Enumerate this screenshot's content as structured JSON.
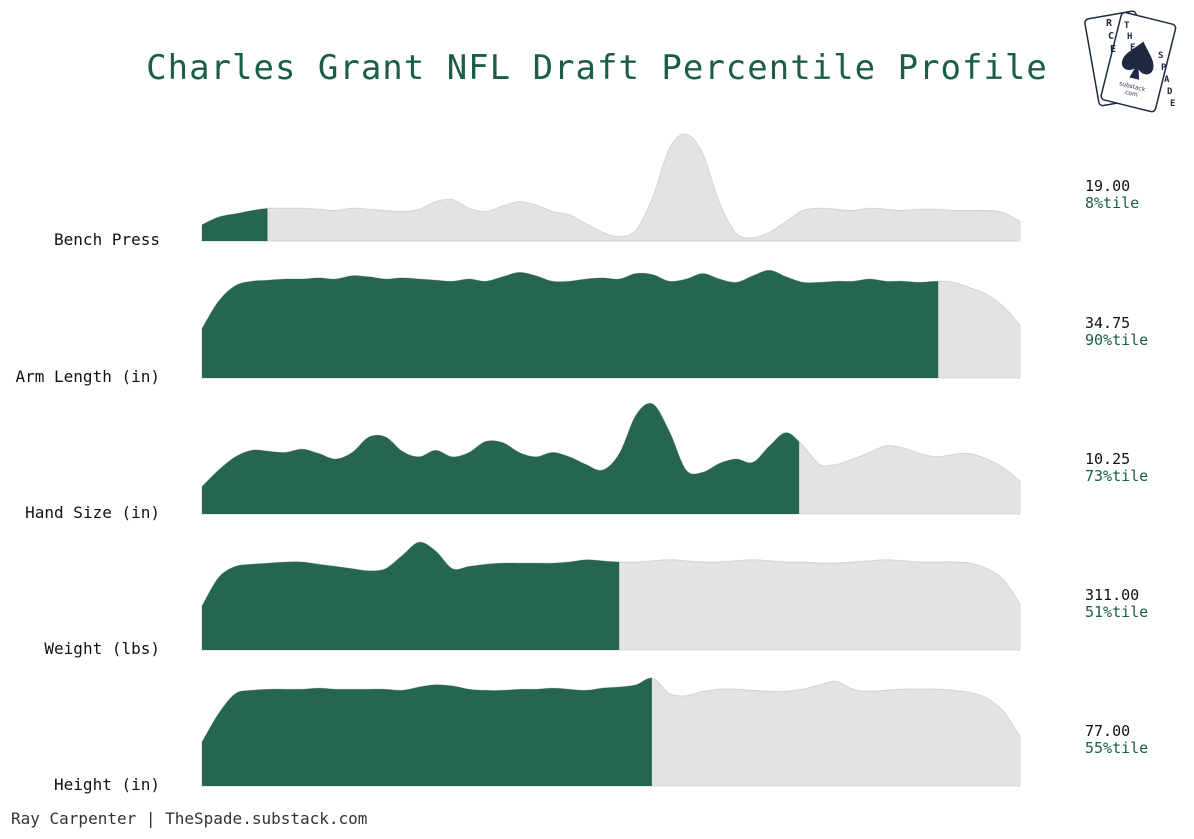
{
  "chart_data": {
    "type": "area",
    "title": "Charles Grant NFL Draft Percentile Profile",
    "subtitle": "",
    "xlabel": "",
    "ylabel": "",
    "style": "ridgeline density; shaded to player's percentile",
    "series": [
      {
        "name": "Bench Press",
        "value": "19.00",
        "percentile_label": "8%tile",
        "percentile": 8
      },
      {
        "name": "Arm Length (in)",
        "value": "34.75",
        "percentile_label": "90%tile",
        "percentile": 90
      },
      {
        "name": "Hand Size (in)",
        "value": "10.25",
        "percentile_label": "73%tile",
        "percentile": 73
      },
      {
        "name": "Weight (lbs)",
        "value": "311.00",
        "percentile_label": "51%tile",
        "percentile": 51
      },
      {
        "name": "Height (in)",
        "value": "77.00",
        "percentile_label": "55%tile",
        "percentile": 55
      }
    ]
  },
  "colors": {
    "highlight": "#266550",
    "rest": "#e3e3e3",
    "outline": "#d4d4d4",
    "title": "#1b5e44",
    "percentile_text": "#1b5e44"
  },
  "footer": "Ray Carpenter | TheSpade.substack.com",
  "logo": {
    "letters_left": "RCE",
    "letters_right": "THE SPADE",
    "small_text_1": "substack",
    "small_text_2": ".com",
    "icon": "spade-icon"
  }
}
